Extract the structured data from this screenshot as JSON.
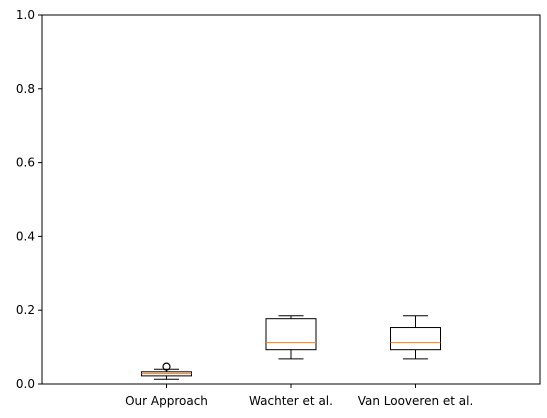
{
  "chart_data": {
    "type": "box",
    "title": "",
    "xlabel": "",
    "ylabel": "",
    "ylim": [
      0,
      1
    ],
    "yticks": [
      "0.0",
      "0.2",
      "0.4",
      "0.6",
      "0.8",
      "1.0"
    ],
    "categories": [
      "Our Approach",
      "Wachter et al.",
      "Van Looveren et al."
    ],
    "series": [
      {
        "category": "Our Approach",
        "whisker_low": 0.013,
        "q1": 0.022,
        "median": 0.028,
        "q3": 0.033,
        "whisker_high": 0.04,
        "outliers": [
          0.047
        ]
      },
      {
        "category": "Wachter et al.",
        "whisker_low": 0.068,
        "q1": 0.093,
        "median": 0.112,
        "q3": 0.177,
        "whisker_high": 0.185,
        "outliers": []
      },
      {
        "category": "Van Looveren et al.",
        "whisker_low": 0.068,
        "q1": 0.093,
        "median": 0.112,
        "q3": 0.153,
        "whisker_high": 0.185,
        "outliers": []
      }
    ],
    "colors": {
      "box": "#000000",
      "median": "#ff7f0e",
      "axes": "#000000"
    },
    "grid": false,
    "legend": "none"
  }
}
